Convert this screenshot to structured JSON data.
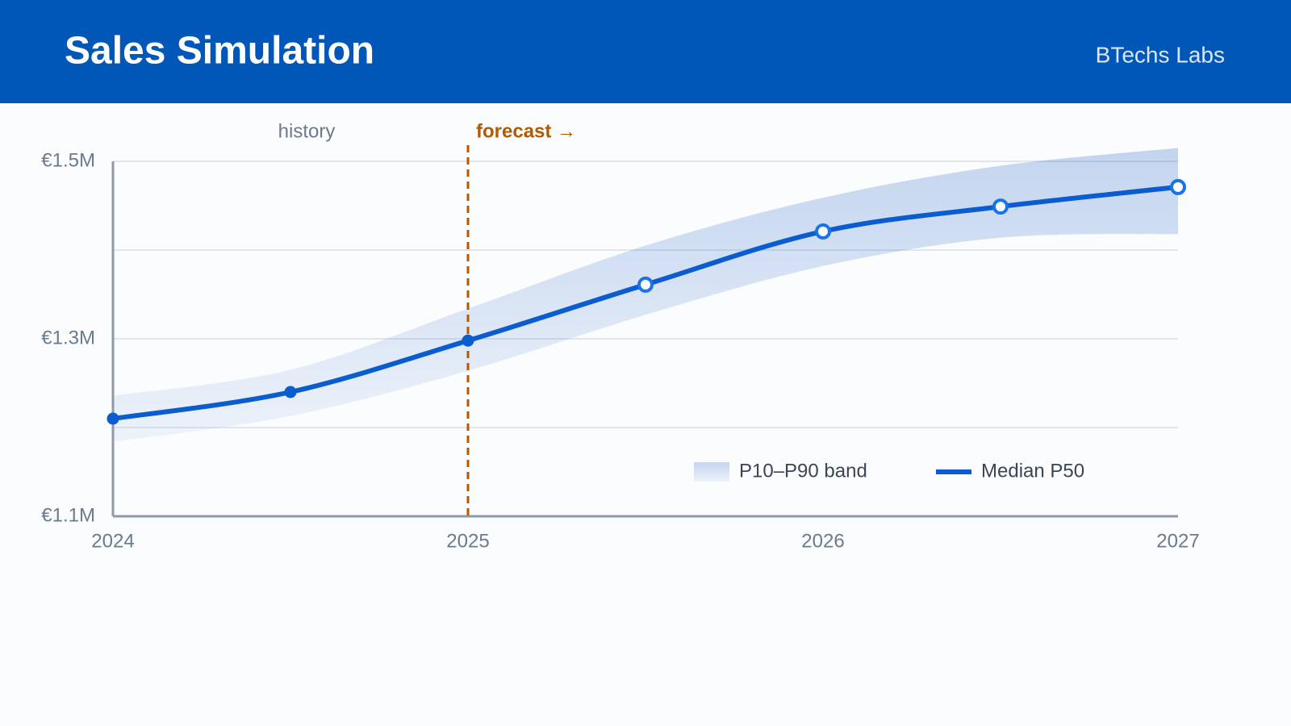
{
  "header": {
    "title": "Sales Simulation",
    "brand": "BTechs Labs"
  },
  "chart_data": {
    "type": "line",
    "x": [
      2024,
      2024.5,
      2025,
      2025.5,
      2026,
      2026.5,
      2027
    ],
    "xlim": [
      2024,
      2027
    ],
    "xticks": [
      2024,
      2025,
      2026,
      2027
    ],
    "ylim": [
      1100000,
      1500000
    ],
    "yticks": [
      {
        "value": 1100000,
        "label": "€1.1M"
      },
      {
        "value": 1300000,
        "label": "€1.3M"
      },
      {
        "value": 1500000,
        "label": "€1.5M"
      }
    ],
    "minor_yticks": [
      1200000,
      1400000
    ],
    "grid": true,
    "series": [
      {
        "name": "Median P50",
        "color": "#0a5ccf",
        "forecast_color": "#1a73e8",
        "values": [
          1210000,
          1240000,
          1298000,
          1361000,
          1421000,
          1449000,
          1471000
        ]
      }
    ],
    "band": {
      "name": "P10–P90 band",
      "color": "#aac4e8",
      "upper": [
        1236000,
        1265000,
        1334000,
        1405000,
        1459000,
        1495000,
        1515000
      ],
      "lower": [
        1184000,
        1213000,
        1264000,
        1327000,
        1382000,
        1414000,
        1418000
      ]
    },
    "forecast_start": 2025,
    "forecast_color": "#b35900",
    "annotations": {
      "history": "history",
      "forecast": "forecast →"
    }
  }
}
